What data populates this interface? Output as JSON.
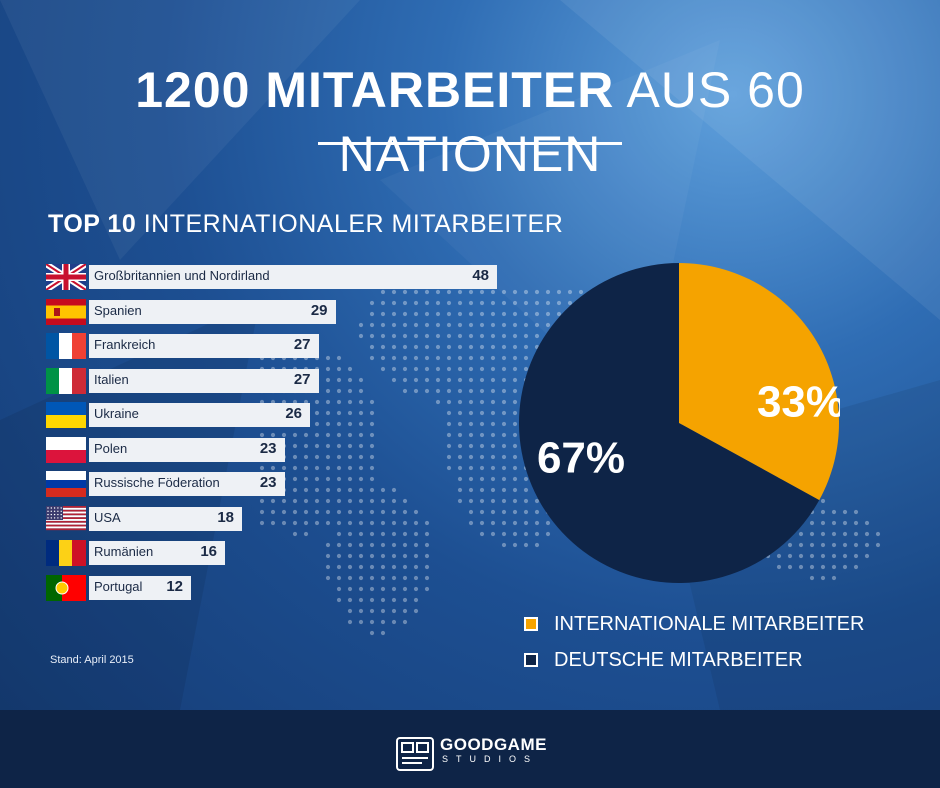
{
  "title": {
    "bold": "1200 MITARBEITER",
    "light": "AUS 60 NATIONEN"
  },
  "subtitle": {
    "bold": "TOP 10",
    "light": "INTERNATIONALER MITARBEITER"
  },
  "stand": "Stand: April 2015",
  "colors": {
    "orange": "#f5a300",
    "navy": "#0e2447",
    "bar": "#eef1f5"
  },
  "chart_data": [
    {
      "type": "bar",
      "orientation": "horizontal",
      "categories": [
        "Großbritannien und Nordirland",
        "Spanien",
        "Frankreich",
        "Italien",
        "Ukraine",
        "Polen",
        "Russische Föderation",
        "USA",
        "Rumänien",
        "Portugal"
      ],
      "values": [
        48,
        29,
        27,
        27,
        26,
        23,
        23,
        18,
        16,
        12
      ],
      "flag_icons": [
        "uk-flag-icon",
        "spain-flag-icon",
        "france-flag-icon",
        "italy-flag-icon",
        "ukraine-flag-icon",
        "poland-flag-icon",
        "russia-flag-icon",
        "usa-flag-icon",
        "romania-flag-icon",
        "portugal-flag-icon"
      ]
    },
    {
      "type": "pie",
      "slices": [
        {
          "label": "INTERNATIONALE MITARBEITER",
          "value": 33,
          "display": "33%",
          "color": "#f5a300"
        },
        {
          "label": "DEUTSCHE MITARBEITER",
          "value": 67,
          "display": "67%",
          "color": "#0e2447"
        }
      ]
    }
  ],
  "logo": {
    "line1": "GOODGAME",
    "line2": "STUDIOS"
  }
}
